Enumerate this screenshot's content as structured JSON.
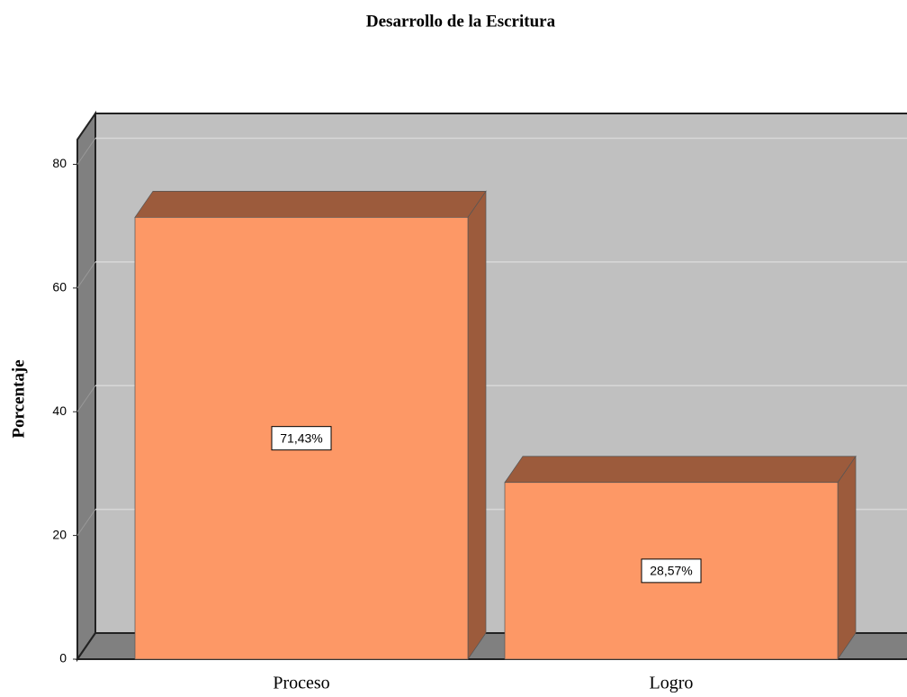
{
  "chart_data": {
    "type": "bar",
    "title": "Desarrollo de la Escritura",
    "y_label": "Porcentaje",
    "categories": [
      "Proceso",
      "Logro"
    ],
    "values": [
      71.43,
      28.57
    ],
    "value_labels": [
      "71,43%",
      "28,57%"
    ],
    "color": "#fd9866",
    "ylim": [
      0,
      84
    ],
    "yticks": [
      0,
      20,
      40,
      60,
      80
    ],
    "grid": true
  }
}
